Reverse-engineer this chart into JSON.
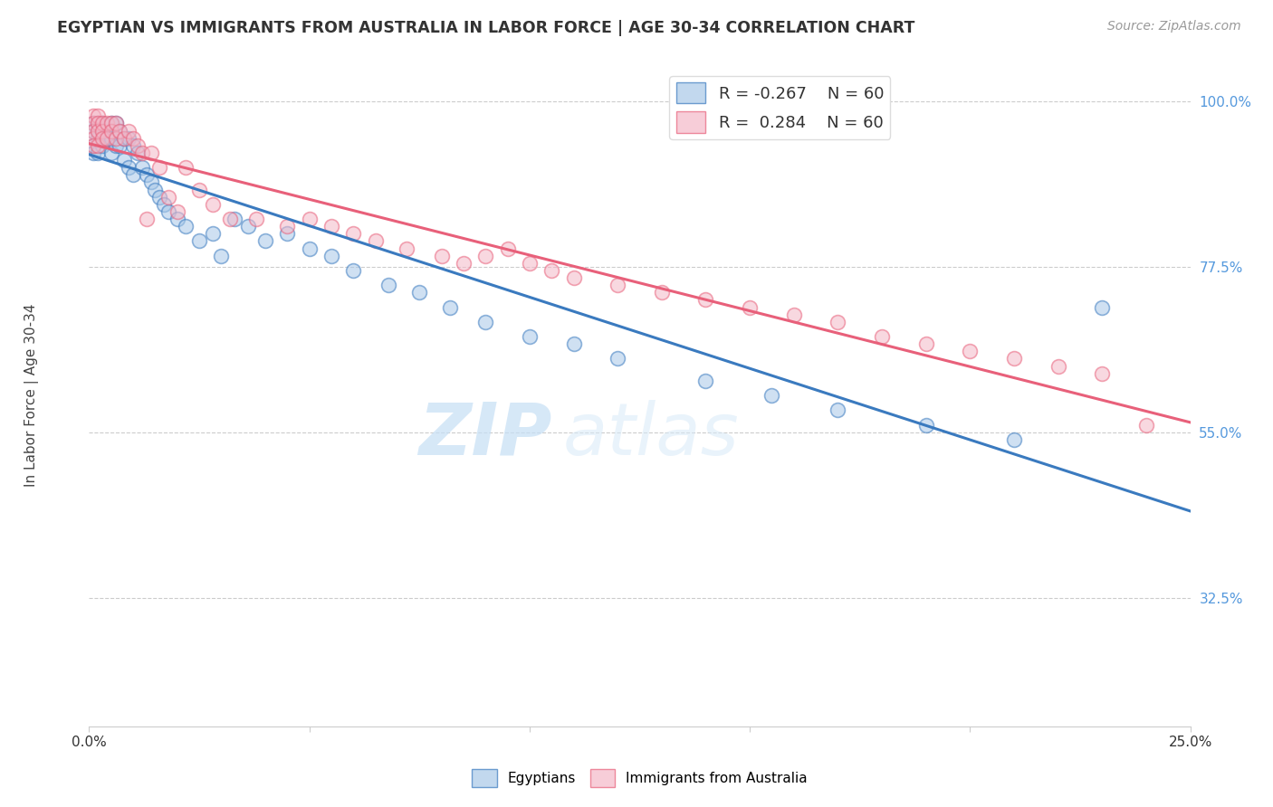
{
  "title": "EGYPTIAN VS IMMIGRANTS FROM AUSTRALIA IN LABOR FORCE | AGE 30-34 CORRELATION CHART",
  "source": "Source: ZipAtlas.com",
  "ylabel": "In Labor Force | Age 30-34",
  "xlim": [
    0.0,
    0.25
  ],
  "ylim": [
    0.15,
    1.05
  ],
  "yticks_right": [
    1.0,
    0.775,
    0.55,
    0.325
  ],
  "ytick_labels_right": [
    "100.0%",
    "77.5%",
    "55.0%",
    "32.5%"
  ],
  "blue_color": "#a8c8e8",
  "pink_color": "#f4b8c8",
  "blue_line_color": "#3a7abf",
  "pink_line_color": "#e8607a",
  "right_label_color": "#5599dd",
  "watermark_zip": "ZIP",
  "watermark_atlas": "atlas",
  "egyptians_x": [
    0.001,
    0.001,
    0.001,
    0.001,
    0.002,
    0.002,
    0.002,
    0.002,
    0.003,
    0.003,
    0.003,
    0.004,
    0.004,
    0.005,
    0.005,
    0.005,
    0.005,
    0.006,
    0.006,
    0.007,
    0.007,
    0.008,
    0.008,
    0.009,
    0.009,
    0.01,
    0.01,
    0.011,
    0.012,
    0.013,
    0.014,
    0.015,
    0.016,
    0.017,
    0.018,
    0.02,
    0.022,
    0.025,
    0.028,
    0.03,
    0.033,
    0.036,
    0.04,
    0.045,
    0.05,
    0.055,
    0.06,
    0.068,
    0.075,
    0.082,
    0.09,
    0.1,
    0.11,
    0.12,
    0.14,
    0.155,
    0.17,
    0.19,
    0.21,
    0.23
  ],
  "egyptians_y": [
    0.97,
    0.96,
    0.94,
    0.93,
    0.97,
    0.96,
    0.95,
    0.93,
    0.97,
    0.96,
    0.94,
    0.96,
    0.95,
    0.97,
    0.96,
    0.95,
    0.93,
    0.97,
    0.94,
    0.96,
    0.94,
    0.95,
    0.92,
    0.95,
    0.91,
    0.94,
    0.9,
    0.93,
    0.91,
    0.9,
    0.89,
    0.88,
    0.87,
    0.86,
    0.85,
    0.84,
    0.83,
    0.81,
    0.82,
    0.79,
    0.84,
    0.83,
    0.81,
    0.82,
    0.8,
    0.79,
    0.77,
    0.75,
    0.74,
    0.72,
    0.7,
    0.68,
    0.67,
    0.65,
    0.62,
    0.6,
    0.58,
    0.56,
    0.54,
    0.72
  ],
  "australia_x": [
    0.001,
    0.001,
    0.001,
    0.001,
    0.001,
    0.002,
    0.002,
    0.002,
    0.002,
    0.003,
    0.003,
    0.003,
    0.004,
    0.004,
    0.005,
    0.005,
    0.006,
    0.006,
    0.007,
    0.008,
    0.009,
    0.01,
    0.011,
    0.012,
    0.013,
    0.014,
    0.016,
    0.018,
    0.02,
    0.022,
    0.025,
    0.028,
    0.032,
    0.038,
    0.045,
    0.05,
    0.055,
    0.06,
    0.065,
    0.072,
    0.08,
    0.085,
    0.09,
    0.095,
    0.1,
    0.105,
    0.11,
    0.12,
    0.13,
    0.14,
    0.15,
    0.16,
    0.17,
    0.18,
    0.19,
    0.2,
    0.21,
    0.22,
    0.23,
    0.24
  ],
  "australia_y": [
    0.98,
    0.97,
    0.96,
    0.95,
    0.94,
    0.98,
    0.97,
    0.96,
    0.94,
    0.97,
    0.96,
    0.95,
    0.97,
    0.95,
    0.97,
    0.96,
    0.97,
    0.95,
    0.96,
    0.95,
    0.96,
    0.95,
    0.94,
    0.93,
    0.84,
    0.93,
    0.91,
    0.87,
    0.85,
    0.91,
    0.88,
    0.86,
    0.84,
    0.84,
    0.83,
    0.84,
    0.83,
    0.82,
    0.81,
    0.8,
    0.79,
    0.78,
    0.79,
    0.8,
    0.78,
    0.77,
    0.76,
    0.75,
    0.74,
    0.73,
    0.72,
    0.71,
    0.7,
    0.68,
    0.67,
    0.66,
    0.65,
    0.64,
    0.63,
    0.56
  ]
}
